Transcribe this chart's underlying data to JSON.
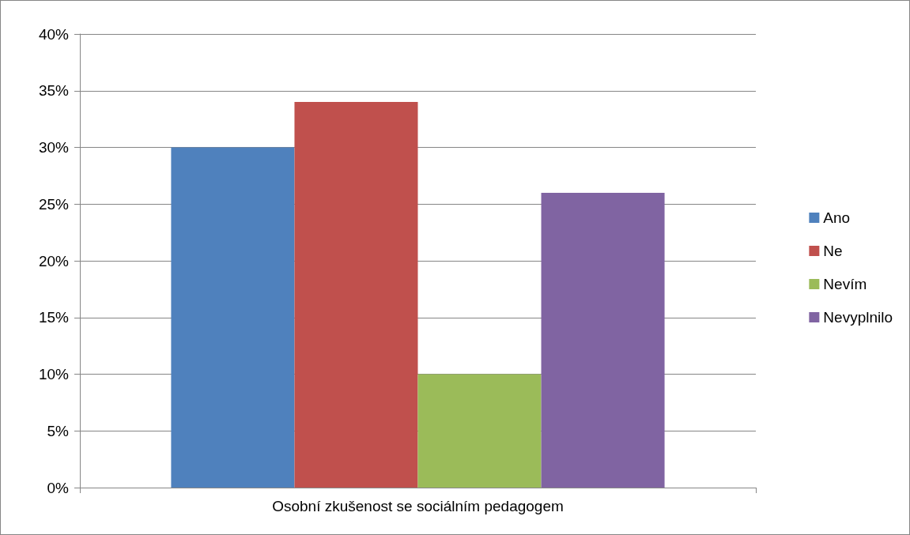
{
  "chart_data": {
    "type": "bar",
    "categories": [
      "Osobní zkušenost se sociálním pedagogem"
    ],
    "series": [
      {
        "name": "Ano",
        "color": "#4f81bd",
        "values": [
          30
        ]
      },
      {
        "name": "Ne",
        "color": "#c0504d",
        "values": [
          34
        ]
      },
      {
        "name": "Nevím",
        "color": "#9bbb59",
        "values": [
          10
        ]
      },
      {
        "name": "Nevyplnilo",
        "color": "#8064a2",
        "values": [
          26
        ]
      }
    ],
    "ylim": [
      0,
      40
    ],
    "yticks": [
      {
        "value": 0,
        "label": "0%"
      },
      {
        "value": 5,
        "label": "5%"
      },
      {
        "value": 10,
        "label": "10%"
      },
      {
        "value": 15,
        "label": "15%"
      },
      {
        "value": 20,
        "label": "20%"
      },
      {
        "value": 25,
        "label": "25%"
      },
      {
        "value": 30,
        "label": "30%"
      },
      {
        "value": 35,
        "label": "35%"
      },
      {
        "value": 40,
        "label": "40%"
      }
    ],
    "grid": "y",
    "legend": "right"
  }
}
